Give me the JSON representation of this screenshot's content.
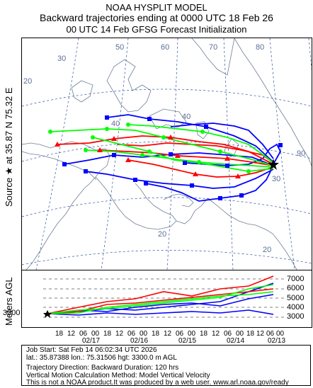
{
  "header": {
    "line1": "NOAA HYSPLIT MODEL",
    "line2": "Backward trajectories ending at 0000 UTC 18 Feb 26",
    "line3": "00 UTC 14 Feb    GFSG  Forecast Initialization"
  },
  "side": {
    "source_label": "Source ★ at   35.87 N   75.32 E",
    "meters_label": "Meters AGL"
  },
  "map": {
    "grid_labels": [
      "20",
      "30",
      "40",
      "40",
      "50",
      "60",
      "70",
      "80",
      "90",
      "20",
      "30",
      "20"
    ],
    "colors": {
      "red": "#ff0000",
      "blue": "#0000ff",
      "green": "#00ff00",
      "map_lines": "#6d7f96",
      "grid": "#3050a0"
    }
  },
  "vertical": {
    "source_height": "3300",
    "altitude_labels": [
      "7000",
      "6000",
      "5000",
      "4000",
      "3000"
    ],
    "hour_ticks": [
      "18",
      "12",
      "06",
      "00",
      "18",
      "12",
      "06",
      "00",
      "18",
      "12",
      "06",
      "00",
      "18",
      "12",
      "06",
      "00",
      "18",
      "12",
      "06",
      "00"
    ],
    "dates": [
      "02/17",
      "02/16",
      "02/15",
      "02/14",
      "02/13"
    ]
  },
  "footer": {
    "job_start": "Job Start: Sat Feb 14 06:02:34 UTC 2026",
    "position": "lat.: 35.87388   lon.: 75.31506   hgt: 3300.0 m AGL",
    "direction": "Trajectory Direction: Backward        Duration: 120 hrs",
    "vertical_motion": "Vertical Motion Calculation Method: Model Vertical Velocity",
    "disclaimer": "This is not a NOAA product.It was produced by a web user. www.arl.noaa.gov/ready"
  }
}
